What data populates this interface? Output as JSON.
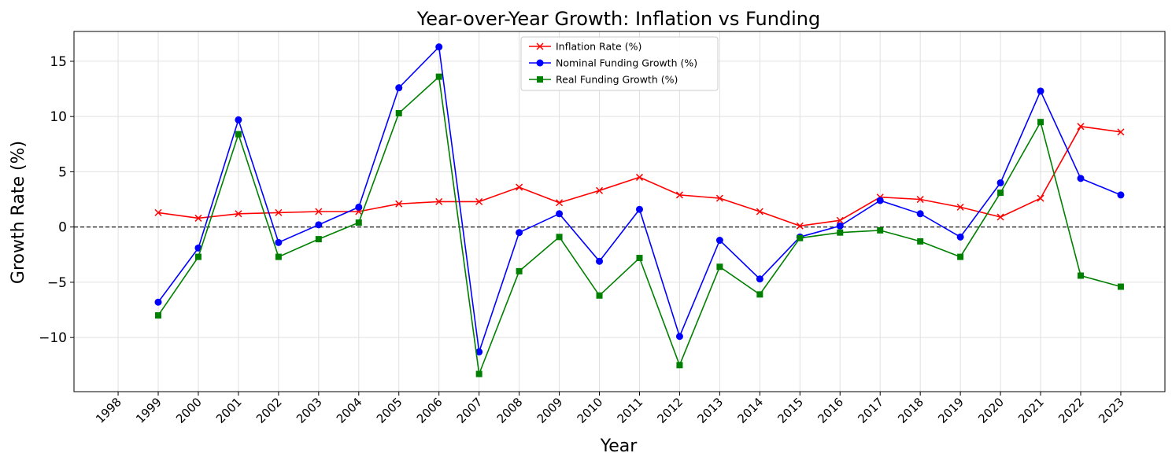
{
  "chart_data": {
    "type": "line",
    "title": "Year-over-Year Growth: Inflation vs Funding",
    "xlabel": "Year",
    "ylabel": "Growth Rate (%)",
    "x_ticks": [
      "1998",
      "1999",
      "2000",
      "2001",
      "2002",
      "2003",
      "2004",
      "2005",
      "2006",
      "2007",
      "2008",
      "2009",
      "2010",
      "2011",
      "2012",
      "2013",
      "2014",
      "2015",
      "2016",
      "2017",
      "2018",
      "2019",
      "2020",
      "2021",
      "2022",
      "2023"
    ],
    "xlim": [
      1996.9,
      2024.1
    ],
    "ylim": [
      -14.9,
      17.7
    ],
    "y_ticks": [
      -10,
      -5,
      0,
      5,
      10,
      15
    ],
    "y_tick_labels": [
      "−10",
      "−5",
      "0",
      "5",
      "10",
      "15"
    ],
    "grid": true,
    "zero_line": true,
    "legend_position": "top-center",
    "x": [
      1999,
      2000,
      2001,
      2002,
      2003,
      2004,
      2005,
      2006,
      2007,
      2008,
      2009,
      2010,
      2011,
      2012,
      2013,
      2014,
      2015,
      2016,
      2017,
      2018,
      2019,
      2020,
      2021,
      2022,
      2023
    ],
    "series": [
      {
        "name": "Inflation Rate (%)",
        "color": "#ff0000",
        "marker": "x",
        "values": [
          1.3,
          0.8,
          1.2,
          1.3,
          1.4,
          1.4,
          2.1,
          2.3,
          2.3,
          3.6,
          2.2,
          3.3,
          4.5,
          2.9,
          2.6,
          1.4,
          0.1,
          0.6,
          2.7,
          2.5,
          1.8,
          0.9,
          2.6,
          9.1,
          8.6
        ]
      },
      {
        "name": "Nominal Funding Growth (%)",
        "color": "#0000ff",
        "marker": "circle",
        "values": [
          -6.8,
          -1.9,
          9.7,
          -1.4,
          0.2,
          1.8,
          12.6,
          16.3,
          -11.3,
          -0.5,
          1.2,
          -3.1,
          1.6,
          -9.9,
          -1.2,
          -4.7,
          -0.9,
          0.1,
          2.4,
          1.2,
          -0.9,
          4.0,
          12.3,
          4.4,
          2.9
        ]
      },
      {
        "name": "Real Funding Growth (%)",
        "color": "#008000",
        "marker": "square",
        "values": [
          -8.0,
          -2.7,
          8.4,
          -2.7,
          -1.1,
          0.4,
          10.3,
          13.6,
          -13.3,
          -4.0,
          -0.9,
          -6.2,
          -2.8,
          -12.5,
          -3.6,
          -6.1,
          -1.0,
          -0.5,
          -0.3,
          -1.3,
          -2.7,
          3.1,
          9.5,
          -4.4,
          -5.4
        ]
      }
    ]
  }
}
